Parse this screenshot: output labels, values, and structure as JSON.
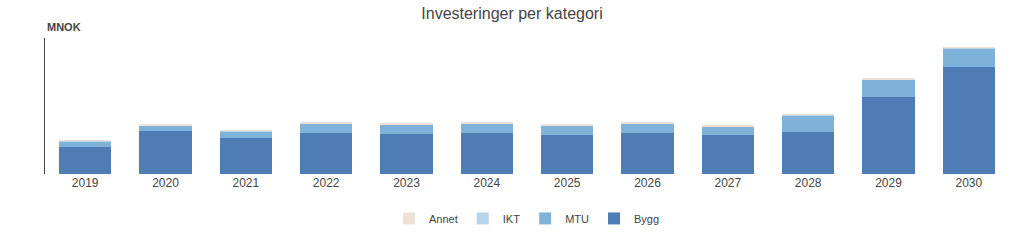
{
  "chart_data": {
    "type": "bar",
    "stacked": true,
    "title": "Investeringer per kategori",
    "ylabel": "MNOK",
    "categories": [
      "2019",
      "2020",
      "2021",
      "2022",
      "2023",
      "2024",
      "2025",
      "2026",
      "2027",
      "2028",
      "2029",
      "2030"
    ],
    "series": [
      {
        "name": "Bygg",
        "color": "#4E7DB5",
        "values": [
          130,
          205,
          170,
          195,
          190,
          195,
          185,
          195,
          185,
          200,
          370,
          510
        ]
      },
      {
        "name": "MTU",
        "color": "#7EB2D8",
        "values": [
          25,
          25,
          35,
          45,
          45,
          45,
          45,
          45,
          40,
          80,
          80,
          90
        ]
      },
      {
        "name": "IKT",
        "color": "#B8D4E8",
        "values": [
          3,
          3,
          3,
          3,
          3,
          3,
          3,
          3,
          3,
          3,
          3,
          3
        ]
      },
      {
        "name": "Annet",
        "color": "#EDE0D8",
        "values": [
          2,
          2,
          2,
          2,
          2,
          2,
          2,
          2,
          2,
          2,
          2,
          2
        ]
      }
    ],
    "ylim": [
      0,
      650
    ],
    "yticks": [],
    "tick_labels": "x",
    "grid": false,
    "legend": "bottom"
  }
}
